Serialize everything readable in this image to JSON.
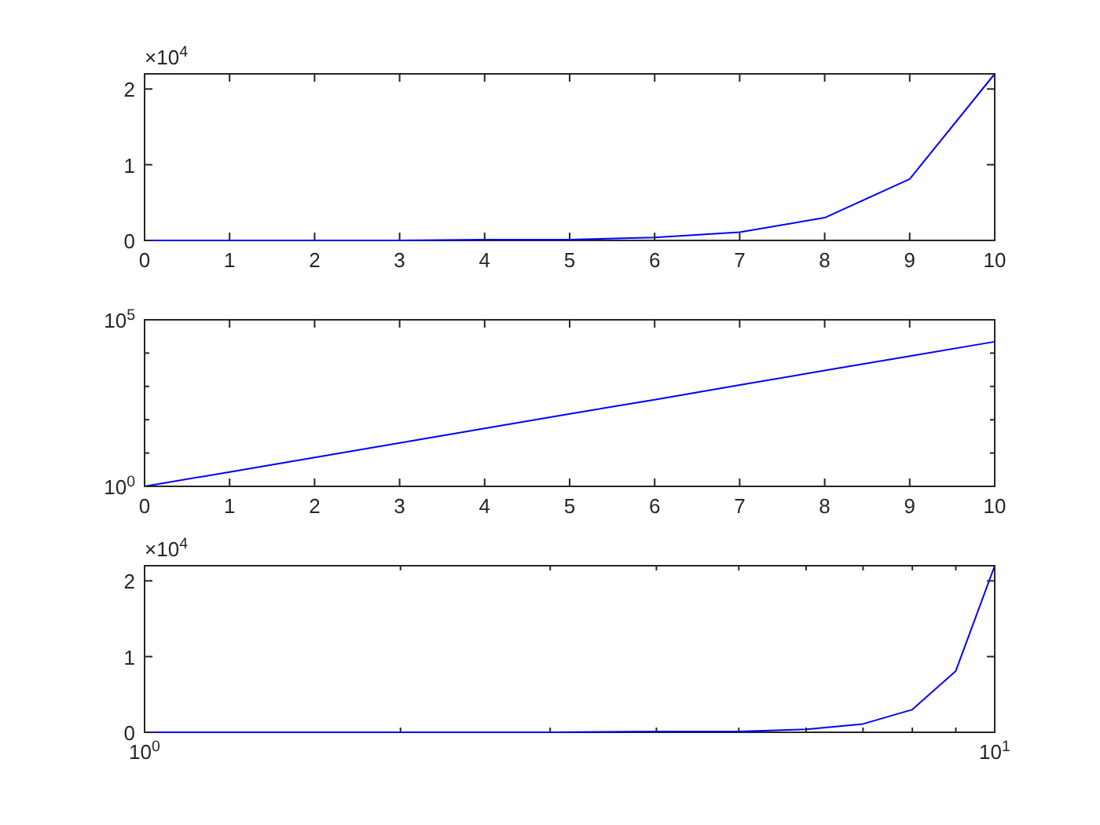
{
  "chart_data": [
    {
      "type": "line",
      "x": [
        0,
        1,
        2,
        3,
        4,
        5,
        6,
        7,
        8,
        9,
        10
      ],
      "series": [
        {
          "color": "#0000ff",
          "values": [
            0,
            0,
            0,
            0,
            0.01,
            0.01,
            0.04,
            0.11,
            0.3,
            0.81,
            2.2
          ]
        }
      ],
      "xlim": [
        0,
        10
      ],
      "xticks": [
        0,
        1,
        2,
        3,
        4,
        5,
        6,
        7,
        8,
        9,
        10
      ],
      "ylim": [
        0,
        2.2
      ],
      "yticks": [
        0,
        1,
        2
      ],
      "annotations": [
        "×10$^{4}$"
      ]
    },
    {
      "type": "line",
      "x": [
        0,
        1,
        2,
        3,
        4,
        5,
        6,
        7,
        8,
        9,
        10
      ],
      "log": "y",
      "series": [
        {
          "color": "#0000ff",
          "values": [
            1,
            2.7,
            7.4,
            20,
            55,
            150,
            400,
            1100,
            3000,
            8100,
            22000
          ]
        }
      ],
      "xlim": [
        0,
        10
      ],
      "xticks": [
        0,
        1,
        2,
        3,
        4,
        5,
        6,
        7,
        8,
        9,
        10
      ],
      "ylim": [
        1,
        100000
      ],
      "yticks": [
        {
          "value": 1,
          "label": "10$^{0}$"
        },
        {
          "value": 10,
          "label": null
        },
        {
          "value": 100,
          "label": null
        },
        {
          "value": 1000,
          "label": null
        },
        {
          "value": 10000,
          "label": null
        },
        {
          "value": 100000,
          "label": "10$^{5}$"
        }
      ]
    },
    {
      "type": "line",
      "x": [
        1,
        2,
        3,
        4,
        5,
        6,
        7,
        8,
        9,
        10
      ],
      "log": "x",
      "series": [
        {
          "color": "#0000ff",
          "values": [
            0,
            0,
            0,
            0.01,
            0.01,
            0.04,
            0.11,
            0.3,
            0.81,
            2.2
          ]
        }
      ],
      "xlim": [
        1,
        10
      ],
      "xticks": [
        {
          "value": 1,
          "label": "10$^{0}$"
        },
        {
          "value": 2,
          "label": null
        },
        {
          "value": 3,
          "label": null
        },
        {
          "value": 4,
          "label": null
        },
        {
          "value": 5,
          "label": null
        },
        {
          "value": 6,
          "label": null
        },
        {
          "value": 7,
          "label": null
        },
        {
          "value": 8,
          "label": null
        },
        {
          "value": 9,
          "label": null
        },
        {
          "value": 10,
          "label": "10$^{1}$"
        }
      ],
      "ylim": [
        0,
        2.2
      ],
      "yticks": [
        0,
        1,
        2
      ],
      "annotations": [
        "×10$^{4}$"
      ]
    }
  ]
}
